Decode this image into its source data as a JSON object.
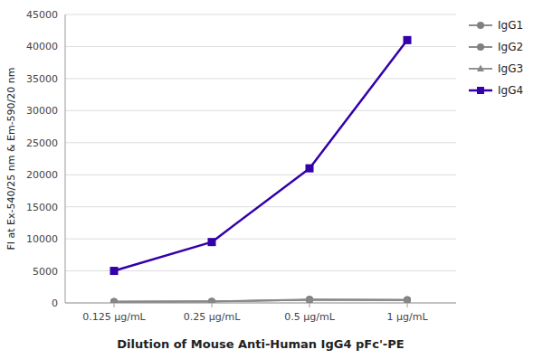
{
  "chart_data": {
    "type": "line",
    "xlabel": "Dilution of Mouse Anti-Human IgG4 pFc'-PE",
    "ylabel": "FI at Ex-540/25 nm & Em-590/20 nm",
    "categories": [
      "0.125 μg/mL",
      "0.25 μg/mL",
      "0.5 μg/mL",
      "1 μg/mL"
    ],
    "series": [
      {
        "name": "IgG1",
        "color": "#808080",
        "marker": "circle",
        "values": [
          200,
          250,
          550,
          500
        ]
      },
      {
        "name": "IgG2",
        "color": "#808080",
        "marker": "circle",
        "values": [
          180,
          220,
          480,
          450
        ]
      },
      {
        "name": "IgG3",
        "color": "#888888",
        "marker": "triangle",
        "values": [
          180,
          220,
          480,
          450
        ]
      },
      {
        "name": "IgG4",
        "color": "#3300aa",
        "marker": "square",
        "values": [
          5000,
          9500,
          21000,
          41000
        ]
      }
    ],
    "ylim": [
      0,
      45000
    ],
    "yticks": [
      0,
      5000,
      10000,
      15000,
      20000,
      25000,
      30000,
      35000,
      40000,
      45000
    ],
    "grid": true,
    "legend": "right"
  }
}
